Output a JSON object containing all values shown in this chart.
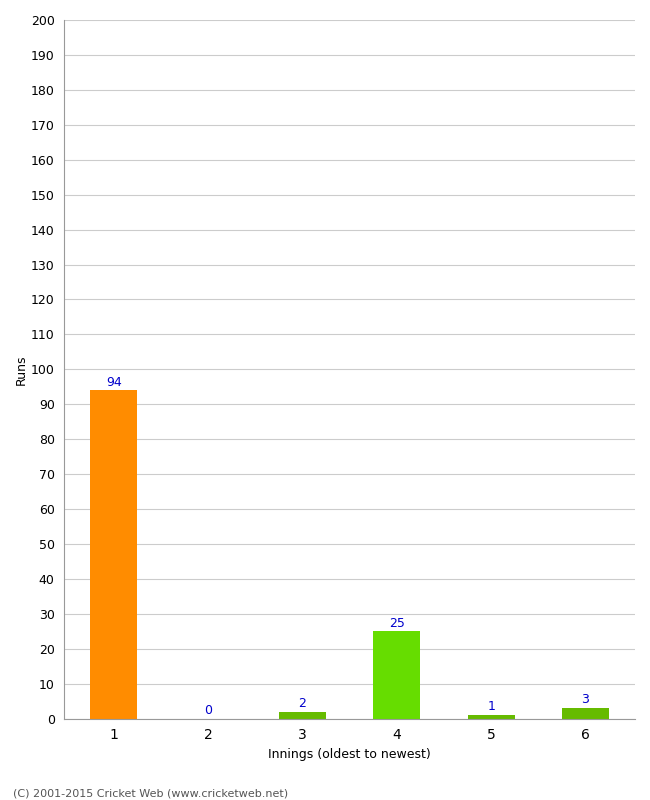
{
  "categories": [
    "1",
    "2",
    "3",
    "4",
    "5",
    "6"
  ],
  "values": [
    94,
    0,
    2,
    25,
    1,
    3
  ],
  "bar_colors": [
    "#ff8c00",
    "#66bb00",
    "#66bb00",
    "#66dd00",
    "#66bb00",
    "#66bb00"
  ],
  "ylabel": "Runs",
  "xlabel": "Innings (oldest to newest)",
  "ylim": [
    0,
    200
  ],
  "yticks": [
    0,
    10,
    20,
    30,
    40,
    50,
    60,
    70,
    80,
    90,
    100,
    110,
    120,
    130,
    140,
    150,
    160,
    170,
    180,
    190,
    200
  ],
  "footer": "(C) 2001-2015 Cricket Web (www.cricketweb.net)",
  "label_color": "#0000cc",
  "background_color": "#ffffff",
  "grid_color": "#cccccc",
  "bar_width": 0.5
}
